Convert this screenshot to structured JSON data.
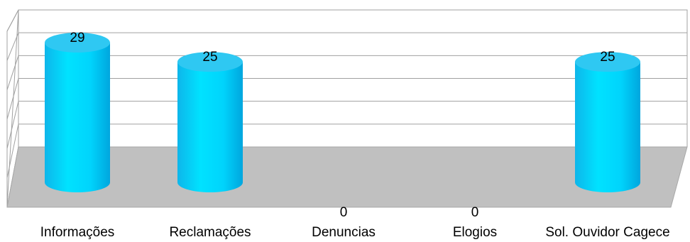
{
  "chart_data": {
    "type": "bar",
    "style": "3d-cylinder",
    "categories": [
      "Informações",
      "Reclamações",
      "Denuncias",
      "Elogios",
      "Sol. Ouvidor Cagece"
    ],
    "values": [
      29,
      25,
      0,
      0,
      25
    ],
    "data_labels": [
      "29",
      "25",
      "0",
      "0",
      "25"
    ],
    "title": "",
    "xlabel": "",
    "ylabel": "",
    "ylim": [
      0,
      30
    ],
    "grid": true,
    "legend": "none",
    "colors": {
      "bar": "#00d8ff",
      "bar_shade": "#00a8e0",
      "bar_top": "#2fc8f2",
      "floor": "#c0c0c0",
      "grid": "#a0a0a0"
    }
  }
}
